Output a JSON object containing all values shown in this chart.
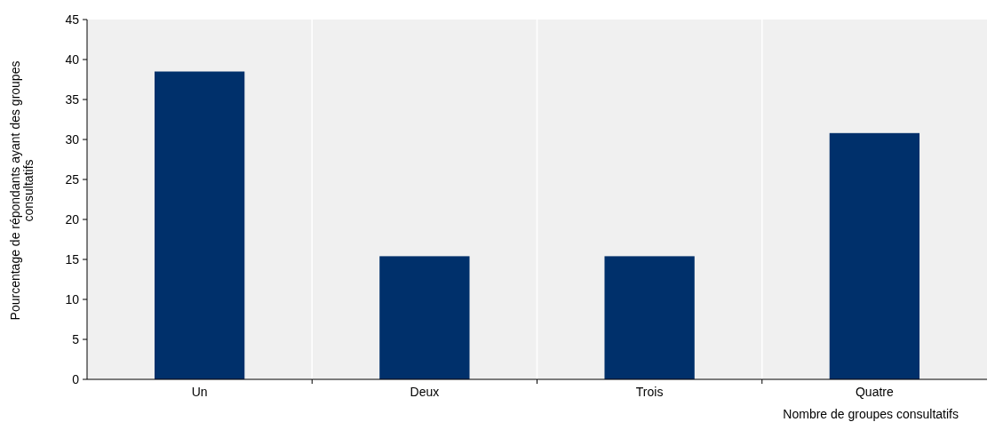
{
  "chart_data": {
    "type": "bar",
    "xlabel": "Nombre de groupes consultatifs",
    "ylabel": "Pourcentage de répondants ayant des groupes consultatifs",
    "categories": [
      "Un",
      "Deux",
      "Trois",
      "Quatre"
    ],
    "values": [
      38.5,
      15.4,
      15.4,
      30.8
    ],
    "color": "#00306b",
    "ylim": [
      0,
      45
    ],
    "yticks": [
      0,
      5,
      10,
      15,
      20,
      25,
      30,
      35,
      40,
      45
    ],
    "grid": "x"
  }
}
